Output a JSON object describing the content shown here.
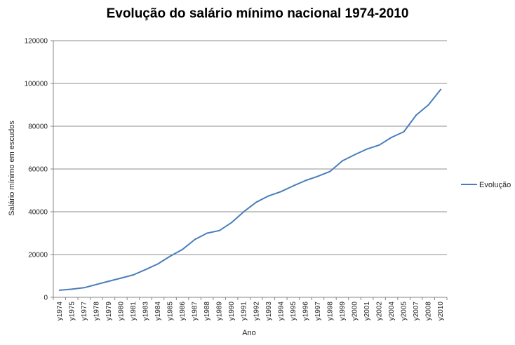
{
  "chart_data": {
    "type": "line",
    "title": "Evolução do salário mínimo nacional 1974-2010",
    "xlabel": "Ano",
    "ylabel": "Salário mínimo em escudos",
    "ylim": [
      0,
      120000
    ],
    "yticks": [
      "0",
      "20000",
      "40000",
      "60000",
      "80000",
      "100000",
      "120000"
    ],
    "grid": true,
    "legend": "right",
    "categories": [
      "y1974",
      "y1975",
      "y1977",
      "y1978",
      "y1979",
      "y1980",
      "y1981",
      "y1983",
      "y1984",
      "y1985",
      "y1986",
      "y1987",
      "y1988",
      "y1989",
      "y1990",
      "y1991",
      "y1992",
      "y1993",
      "y1994",
      "y1995",
      "y1996",
      "y1997",
      "y1998",
      "y1999",
      "y2000",
      "y2001",
      "y2002",
      "y2004",
      "y2005",
      "y2007",
      "y2008",
      "y2010"
    ],
    "series": [
      {
        "name": "Evolução",
        "color": "#4a7ebb",
        "values": [
          3300,
          3800,
          4500,
          6000,
          7500,
          9000,
          10500,
          13000,
          15600,
          19200,
          22400,
          27000,
          30000,
          31200,
          35000,
          40100,
          44500,
          47400,
          49400,
          52100,
          54600,
          56600,
          58900,
          63800,
          66700,
          69300,
          71200,
          74800,
          77400,
          85200,
          90000,
          97200
        ]
      }
    ]
  }
}
